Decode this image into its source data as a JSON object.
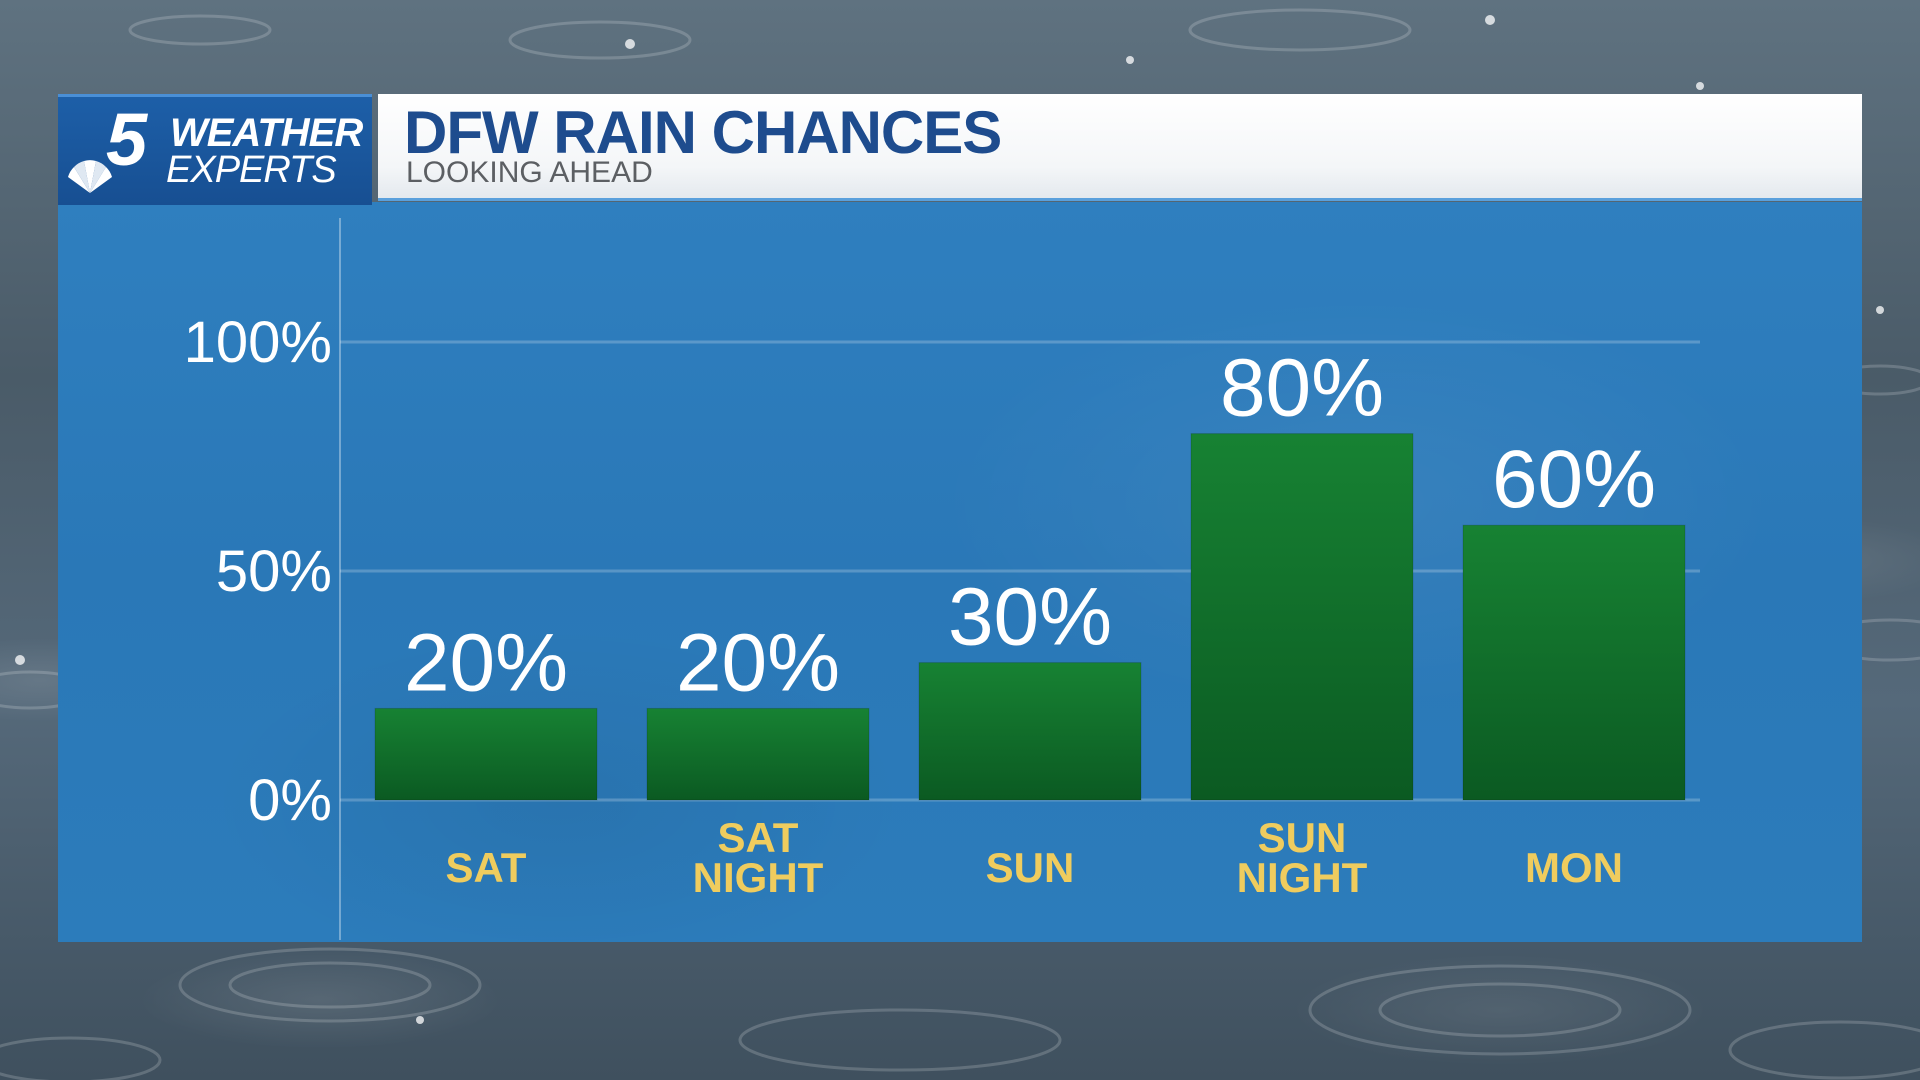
{
  "brand": {
    "number": "5",
    "line1": "WEATHER",
    "line2": "EXPERTS"
  },
  "header": {
    "title": "DFW RAIN CHANCES",
    "subtitle": "LOOKING AHEAD"
  },
  "colors": {
    "panel": "#2c7bbb",
    "bar": "#0f6a2a",
    "category_text": "#efcc5e",
    "title": "#1e4c8e"
  },
  "chart_data": {
    "type": "bar",
    "title": "DFW RAIN CHANCES",
    "subtitle": "LOOKING AHEAD",
    "categories": [
      [
        "SAT"
      ],
      [
        "SAT",
        "NIGHT"
      ],
      [
        "SUN"
      ],
      [
        "SUN",
        "NIGHT"
      ],
      [
        "MON"
      ]
    ],
    "values": [
      20,
      20,
      30,
      80,
      60
    ],
    "value_labels": [
      "20%",
      "20%",
      "30%",
      "80%",
      "60%"
    ],
    "yticks": [
      0,
      50,
      100
    ],
    "ytick_labels": [
      "0%",
      "50%",
      "100%"
    ],
    "ylim": [
      0,
      100
    ],
    "grid": true,
    "legend": "none"
  }
}
